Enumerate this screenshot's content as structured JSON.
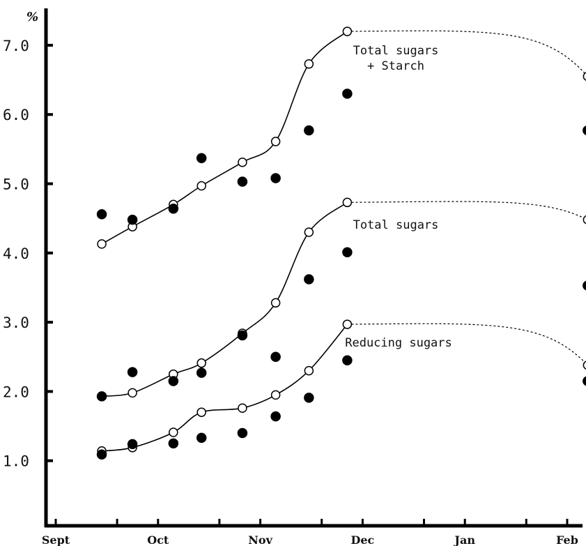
{
  "chart_data": {
    "type": "scatter",
    "title": "",
    "xlabel": "",
    "ylabel": "",
    "y_unit": "%",
    "ylim": [
      0.0,
      7.5
    ],
    "xlim": [
      0,
      11
    ],
    "y_ticks": [
      {
        "value": 1.0,
        "label": "1.0"
      },
      {
        "value": 2.0,
        "label": "2.0"
      },
      {
        "value": 3.0,
        "label": "3.0"
      },
      {
        "value": 4.0,
        "label": "4.0"
      },
      {
        "value": 5.0,
        "label": "5.0"
      },
      {
        "value": 6.0,
        "label": "6.0"
      },
      {
        "value": 7.0,
        "label": "7.0"
      }
    ],
    "x_ticks": [
      {
        "value": 0.0,
        "label": "Sept"
      },
      {
        "value": 2.0,
        "label": "Oct"
      },
      {
        "value": 4.0,
        "label": "Nov"
      },
      {
        "value": 6.0,
        "label": "Dec"
      },
      {
        "value": 8.0,
        "label": "Jan"
      },
      {
        "value": 10.0,
        "label": "Feb"
      }
    ],
    "x_minor_ticks": [
      1.2,
      3.2,
      5.2,
      7.2,
      9.2
    ],
    "grid": false,
    "legend": "none",
    "series": [
      {
        "name": "Total sugars + Starch",
        "label_lines": [
          "Total sugars",
          "+ Starch"
        ],
        "marker": "open",
        "x": [
          0.9,
          1.5,
          2.3,
          2.85,
          3.65,
          4.3,
          4.95,
          5.7,
          10.4
        ],
        "y": [
          4.13,
          4.38,
          4.7,
          4.97,
          5.31,
          5.61,
          6.73,
          7.2,
          6.55
        ],
        "solid_until_index": 7
      },
      {
        "name": "",
        "marker": "filled",
        "x": [
          0.9,
          1.5,
          2.3,
          2.85,
          3.65,
          4.3,
          4.95,
          5.7,
          10.4
        ],
        "y": [
          4.56,
          4.48,
          4.64,
          5.37,
          5.03,
          5.08,
          5.77,
          6.3,
          5.77
        ]
      },
      {
        "name": "Total sugars",
        "label_lines": [
          "Total sugars"
        ],
        "marker": "open",
        "x": [
          0.9,
          1.5,
          2.3,
          2.85,
          3.65,
          4.3,
          4.95,
          5.7,
          10.4
        ],
        "y": [
          1.93,
          1.98,
          2.25,
          2.41,
          2.84,
          3.28,
          4.3,
          4.73,
          4.48
        ],
        "solid_until_index": 7
      },
      {
        "name": "",
        "marker": "filled",
        "x": [
          0.9,
          1.5,
          2.3,
          2.85,
          3.65,
          4.3,
          4.95,
          5.7,
          10.4
        ],
        "y": [
          1.93,
          2.28,
          2.15,
          2.27,
          2.81,
          2.5,
          3.62,
          4.01,
          3.53
        ]
      },
      {
        "name": "Reducing sugars",
        "label_lines": [
          "Reducing sugars"
        ],
        "marker": "open",
        "x": [
          0.9,
          1.5,
          2.3,
          2.85,
          3.65,
          4.3,
          4.95,
          5.7,
          10.4
        ],
        "y": [
          1.14,
          1.19,
          1.41,
          1.7,
          1.76,
          1.95,
          2.3,
          2.97,
          2.38
        ],
        "solid_until_index": 7
      },
      {
        "name": "",
        "marker": "filled",
        "x": [
          0.9,
          1.5,
          2.3,
          2.85,
          3.65,
          4.3,
          4.95,
          5.7,
          10.4
        ],
        "y": [
          1.09,
          1.24,
          1.25,
          1.33,
          1.4,
          1.64,
          1.91,
          2.45,
          2.15
        ]
      }
    ]
  }
}
